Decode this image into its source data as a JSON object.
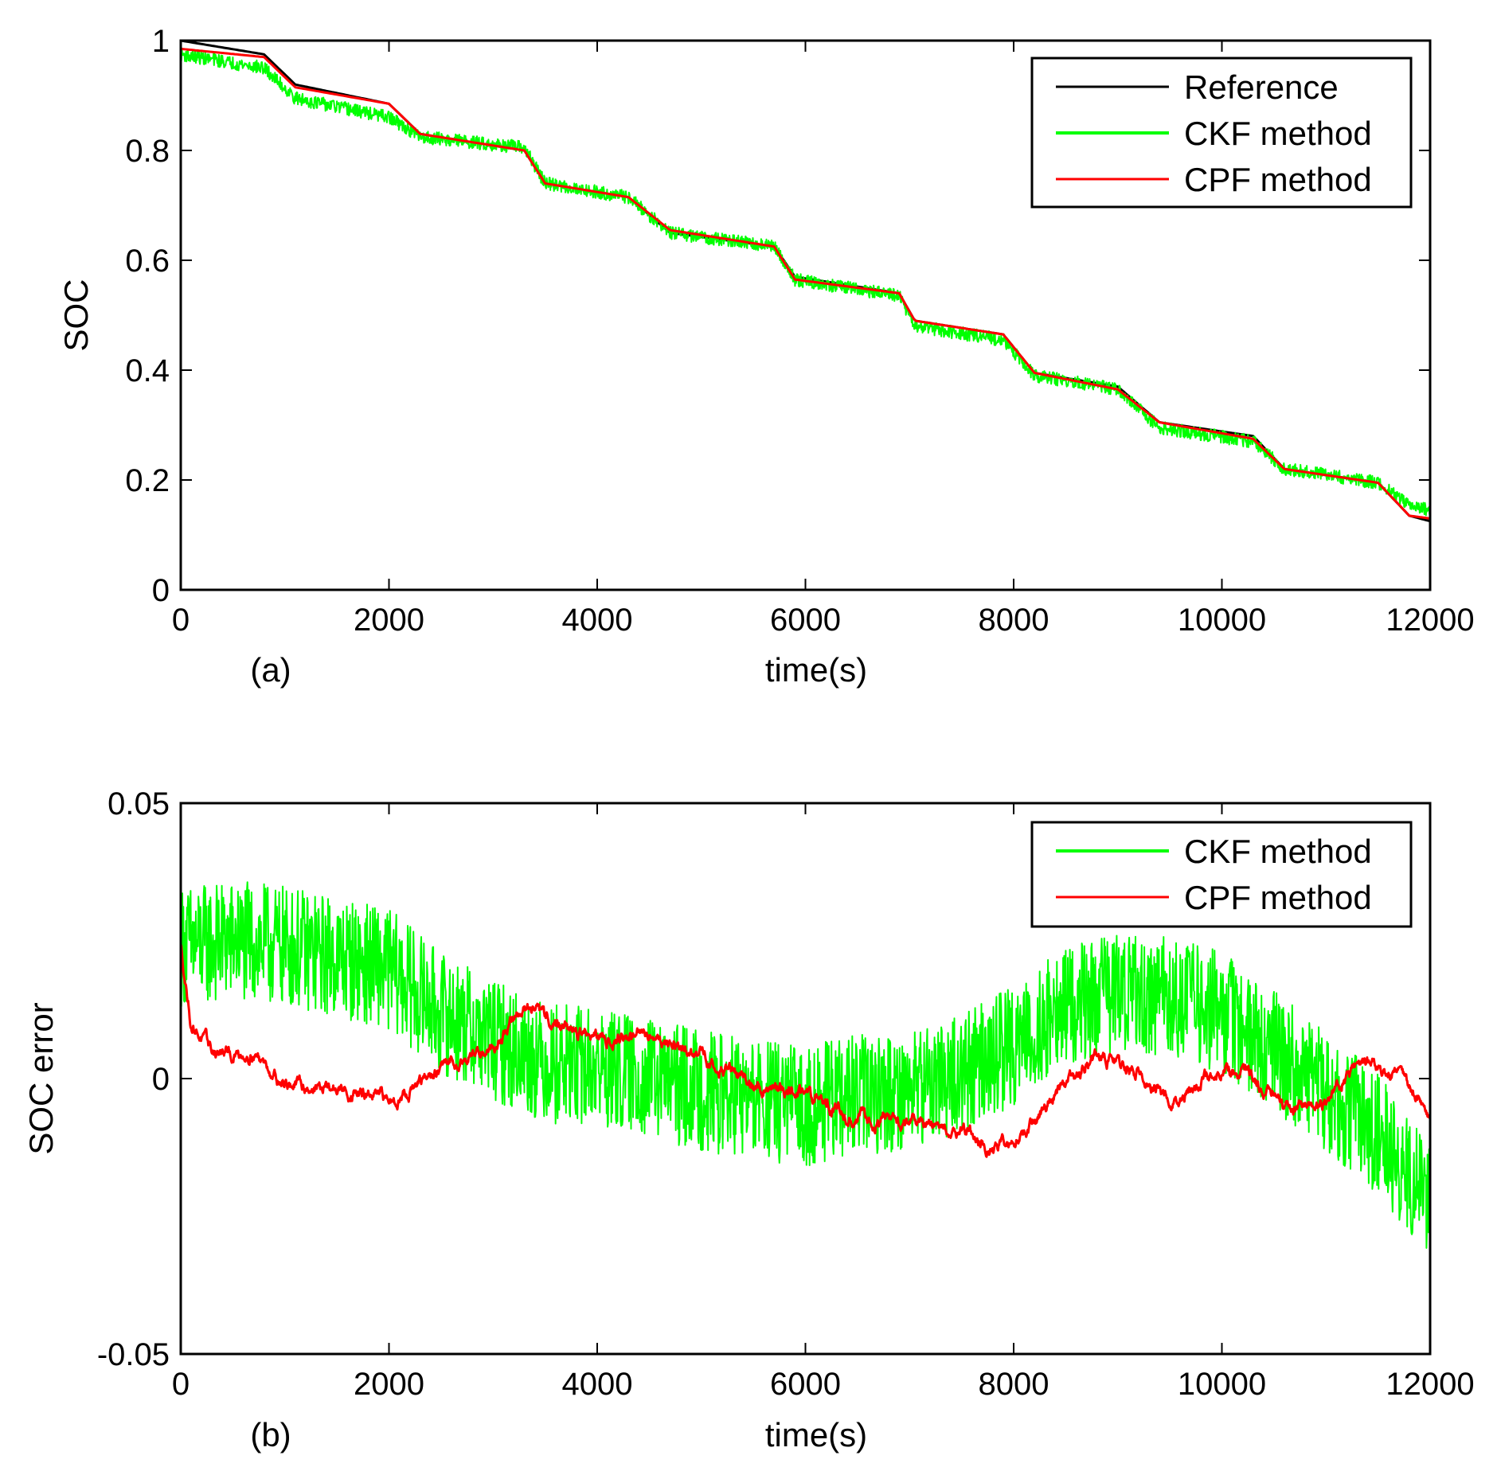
{
  "colors": {
    "reference": "#000000",
    "ckf": "#00ff00",
    "cpf": "#ff0000",
    "axes": "#000000"
  },
  "chart_data": [
    {
      "type": "line",
      "panel_label": "(a)",
      "xlabel": "time(s)",
      "ylabel": "SOC",
      "xlim": [
        0,
        12000
      ],
      "ylim": [
        0,
        1
      ],
      "xticks": [
        0,
        2000,
        4000,
        6000,
        8000,
        10000,
        12000
      ],
      "xtick_labels": [
        "0",
        "2000",
        "4000",
        "6000",
        "8000",
        "10000",
        "12000"
      ],
      "yticks": [
        0,
        0.2,
        0.4,
        0.6,
        0.8,
        1
      ],
      "ytick_labels": [
        "0",
        "0.2",
        "0.4",
        "0.6",
        "0.8",
        "1"
      ],
      "legend_position": "top-right",
      "series": [
        {
          "name": "Reference",
          "color": "#000000",
          "noise": 0,
          "x": [
            0,
            800,
            1100,
            2000,
            2300,
            3300,
            3500,
            4300,
            4700,
            5700,
            5900,
            6900,
            7050,
            7900,
            8200,
            9000,
            9400,
            10300,
            10600,
            11500,
            11800,
            12000
          ],
          "y": [
            1.0,
            0.975,
            0.92,
            0.885,
            0.83,
            0.8,
            0.74,
            0.715,
            0.65,
            0.625,
            0.57,
            0.54,
            0.49,
            0.465,
            0.395,
            0.37,
            0.305,
            0.28,
            0.22,
            0.195,
            0.135,
            0.125
          ]
        },
        {
          "name": "CKF method",
          "color": "#00ff00",
          "noise": 0.012,
          "x": [
            0,
            800,
            1100,
            2000,
            2300,
            3300,
            3500,
            4300,
            4700,
            5700,
            5900,
            6900,
            7050,
            7900,
            8200,
            9000,
            9400,
            10300,
            10600,
            11500,
            11800,
            12000
          ],
          "y": [
            0.975,
            0.95,
            0.895,
            0.86,
            0.825,
            0.805,
            0.74,
            0.715,
            0.65,
            0.625,
            0.565,
            0.535,
            0.48,
            0.455,
            0.39,
            0.365,
            0.295,
            0.27,
            0.22,
            0.195,
            0.155,
            0.145
          ]
        },
        {
          "name": "CPF method",
          "color": "#ff0000",
          "noise": 0,
          "x": [
            0,
            800,
            1100,
            2000,
            2300,
            3300,
            3500,
            4300,
            4700,
            5700,
            5900,
            6900,
            7050,
            7900,
            8200,
            9000,
            9400,
            10300,
            10600,
            11500,
            11800,
            12000
          ],
          "y": [
            0.985,
            0.97,
            0.915,
            0.885,
            0.83,
            0.8,
            0.74,
            0.715,
            0.655,
            0.625,
            0.565,
            0.54,
            0.49,
            0.465,
            0.395,
            0.365,
            0.305,
            0.275,
            0.22,
            0.195,
            0.135,
            0.13
          ]
        }
      ]
    },
    {
      "type": "line",
      "panel_label": "(b)",
      "xlabel": "time(s)",
      "ylabel": "SOC error",
      "xlim": [
        0,
        12000
      ],
      "ylim": [
        -0.05,
        0.05
      ],
      "xticks": [
        0,
        2000,
        4000,
        6000,
        8000,
        10000,
        12000
      ],
      "xtick_labels": [
        "0",
        "2000",
        "4000",
        "6000",
        "8000",
        "10000",
        "12000"
      ],
      "yticks": [
        -0.05,
        0,
        0.05
      ],
      "ytick_labels": [
        "-0.05",
        "0",
        "0.05"
      ],
      "legend_position": "top-right",
      "series": [
        {
          "name": "CKF method",
          "color": "#00ff00",
          "noise": 0.011,
          "x": [
            0,
            500,
            1000,
            1500,
            2000,
            2500,
            3000,
            3500,
            4000,
            4500,
            5000,
            5500,
            6000,
            6500,
            7000,
            7500,
            8000,
            8500,
            9000,
            9500,
            10000,
            10500,
            11000,
            11500,
            12000
          ],
          "y": [
            0.024,
            0.025,
            0.024,
            0.022,
            0.02,
            0.012,
            0.007,
            0.003,
            0.002,
            0.0,
            -0.002,
            -0.004,
            -0.005,
            -0.003,
            -0.002,
            0.001,
            0.006,
            0.013,
            0.016,
            0.015,
            0.012,
            0.005,
            -0.002,
            -0.01,
            -0.022
          ]
        },
        {
          "name": "CPF method",
          "color": "#ff0000",
          "noise": 0.0012,
          "x": [
            0,
            100,
            300,
            500,
            700,
            1000,
            1500,
            2000,
            2300,
            2600,
            3000,
            3300,
            3500,
            4000,
            4500,
            5000,
            5500,
            6000,
            6500,
            7000,
            7500,
            7800,
            8100,
            8400,
            8800,
            9200,
            9500,
            10000,
            10300,
            10600,
            11000,
            11300,
            11700,
            12000
          ],
          "y": [
            0.024,
            0.01,
            0.005,
            0.004,
            0.005,
            -0.001,
            -0.002,
            -0.004,
            -0.001,
            0.003,
            0.006,
            0.013,
            0.011,
            0.007,
            0.008,
            0.004,
            -0.001,
            -0.003,
            -0.007,
            -0.008,
            -0.009,
            -0.013,
            -0.01,
            -0.003,
            0.004,
            0.001,
            -0.004,
            0.002,
            0.0,
            -0.006,
            -0.005,
            0.003,
            0.001,
            -0.006
          ]
        }
      ]
    }
  ]
}
